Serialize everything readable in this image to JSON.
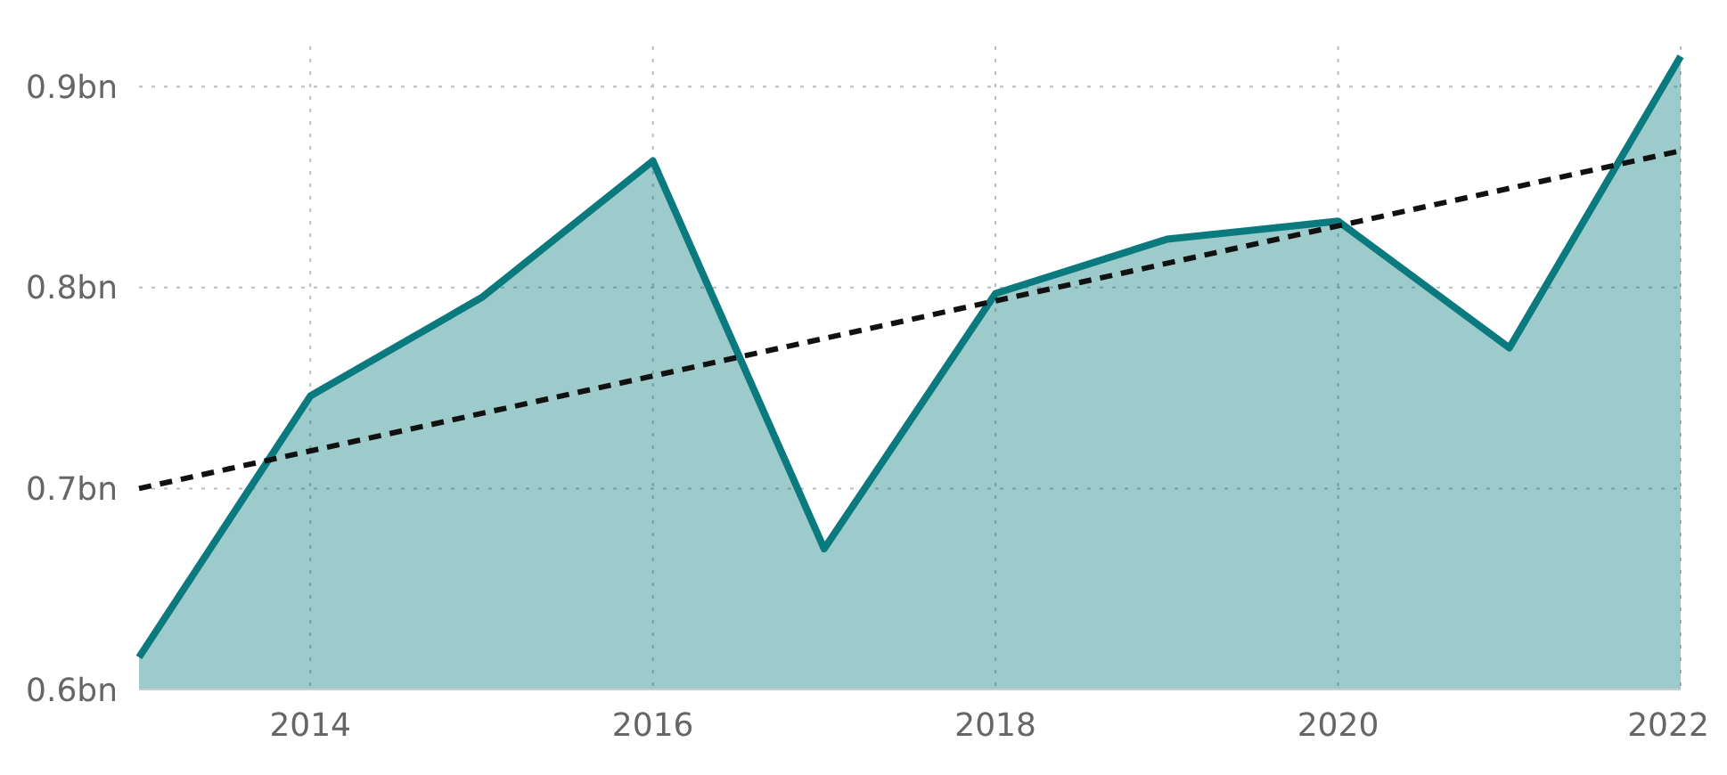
{
  "chart_data": {
    "type": "area",
    "x": [
      2013,
      2014,
      2015,
      2016,
      2017,
      2018,
      2019,
      2020,
      2021,
      2022
    ],
    "series": [
      {
        "color": "#0a7a7e",
        "values": [
          0.616,
          0.746,
          0.795,
          0.863,
          0.67,
          0.797,
          0.824,
          0.833,
          0.77,
          0.915
        ]
      },
      {
        "type": "line",
        "color": "#111111",
        "line_style": "dashed",
        "x": [
          2013,
          2022
        ],
        "values": [
          0.7,
          0.868
        ]
      }
    ],
    "xlim": [
      2013,
      2022
    ],
    "xticks": [
      2014,
      2016,
      2018,
      2020,
      2022
    ],
    "ylim": [
      0.6,
      0.92
    ],
    "yticks": [
      {
        "value": 0.6,
        "label": "0.6bn"
      },
      {
        "value": 0.7,
        "label": "0.7bn"
      },
      {
        "value": 0.8,
        "label": "0.8bn"
      },
      {
        "value": 0.9,
        "label": "0.9bn"
      }
    ],
    "grid": true
  }
}
